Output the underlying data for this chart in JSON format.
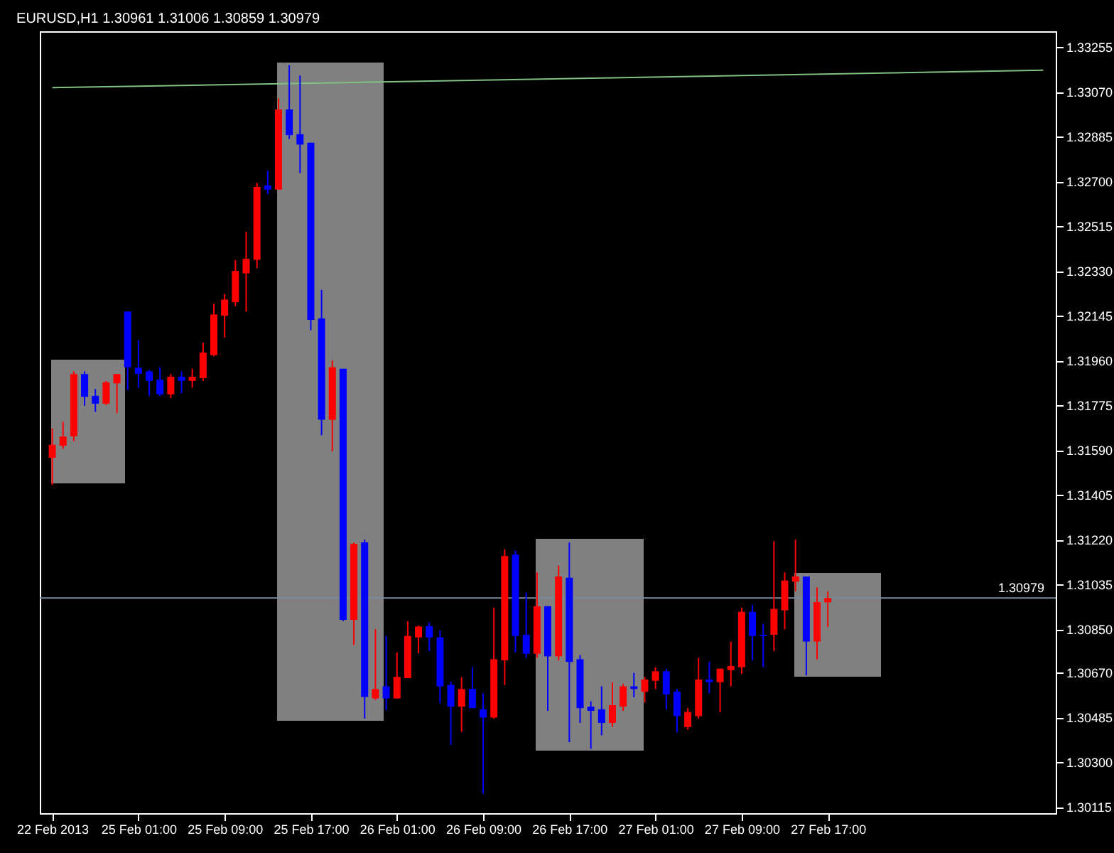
{
  "chart_data": {
    "type": "candlestick",
    "title": "EURUSD,H1  1.30961 1.31006 1.30859 1.30979",
    "categories": [
      "22 Feb 2013",
      null,
      null,
      null,
      null,
      null,
      null,
      null,
      "25 Feb 01:00",
      null,
      null,
      null,
      null,
      null,
      null,
      null,
      "25 Feb 09:00",
      null,
      null,
      null,
      null,
      null,
      null,
      null,
      "25 Feb 17:00",
      null,
      null,
      null,
      null,
      null,
      null,
      null,
      "26 Feb 01:00",
      null,
      null,
      null,
      null,
      null,
      null,
      null,
      "26 Feb 09:00",
      null,
      null,
      null,
      null,
      null,
      null,
      null,
      "26 Feb 17:00",
      null,
      null,
      null,
      null,
      null,
      null,
      null,
      "27 Feb 01:00",
      null,
      null,
      null,
      null,
      null,
      null,
      null,
      "27 Feb 09:00",
      null,
      null,
      null,
      null,
      null,
      null,
      null,
      "27 Feb 17:00",
      null,
      null,
      null,
      null,
      null,
      null,
      null,
      null,
      null,
      null,
      null,
      null,
      null,
      null,
      null,
      null,
      null,
      null,
      null,
      null
    ],
    "ohlc": [
      [
        1.31558,
        1.31679,
        1.31446,
        1.31612
      ],
      [
        1.31608,
        1.31707,
        1.31595,
        1.31646
      ],
      [
        1.31647,
        1.31915,
        1.31627,
        1.31904
      ],
      [
        1.31904,
        1.31915,
        1.31773,
        1.3181
      ],
      [
        1.31814,
        1.31842,
        1.31748,
        1.31782
      ],
      [
        1.31782,
        1.31876,
        1.31776,
        1.3187
      ],
      [
        1.31866,
        1.31904,
        1.31743,
        1.31904
      ],
      [
        1.32162,
        1.32162,
        1.31838,
        1.31932
      ],
      [
        1.3193,
        1.32044,
        1.31848,
        1.31905
      ],
      [
        1.31915,
        1.31922,
        1.31814,
        1.31876
      ],
      [
        1.31881,
        1.31932,
        1.31814,
        1.3182
      ],
      [
        1.3182,
        1.31904,
        1.31804,
        1.31893
      ],
      [
        1.31893,
        1.31915,
        1.31825,
        1.31876
      ],
      [
        1.31876,
        1.31926,
        1.31848,
        1.31893
      ],
      [
        1.31887,
        1.32033,
        1.31876,
        1.31993
      ],
      [
        1.31982,
        1.32195,
        1.31977,
        1.3215
      ],
      [
        1.32145,
        1.32235,
        1.32055,
        1.32212
      ],
      [
        1.32201,
        1.32375,
        1.32184,
        1.3233
      ],
      [
        1.3232,
        1.32492,
        1.32162,
        1.3238
      ],
      [
        1.32376,
        1.32694,
        1.32341,
        1.32677
      ],
      [
        1.32683,
        1.32745,
        1.32647,
        1.32666
      ],
      [
        1.32666,
        1.33043,
        1.32666,
        1.32997
      ],
      [
        1.32997,
        1.3318,
        1.32875,
        1.32891
      ],
      [
        1.32895,
        1.33137,
        1.32734,
        1.32852
      ],
      [
        1.3286,
        1.3286,
        1.32085,
        1.32128
      ],
      [
        1.32134,
        1.32252,
        1.31651,
        1.31715
      ],
      [
        1.31715,
        1.3196,
        1.31585,
        1.31932
      ],
      [
        1.31926,
        1.31926,
        1.30884,
        1.30889
      ],
      [
        1.30889,
        1.31208,
        1.30785,
        1.31203
      ],
      [
        1.31209,
        1.3122,
        1.30481,
        1.3057
      ],
      [
        1.30564,
        1.3085,
        1.30558,
        1.30603
      ],
      [
        1.30614,
        1.30822,
        1.30515,
        1.30564
      ],
      [
        1.30564,
        1.30754,
        1.30564,
        1.30653
      ],
      [
        1.30648,
        1.30883,
        1.30648,
        1.30822
      ],
      [
        1.30816,
        1.30866,
        1.30751,
        1.30861
      ],
      [
        1.30863,
        1.30878,
        1.3076,
        1.30816
      ],
      [
        1.30816,
        1.30845,
        1.30544,
        1.30614
      ],
      [
        1.3062,
        1.30633,
        1.30373,
        1.3053
      ],
      [
        1.3053,
        1.30653,
        1.30426,
        1.30603
      ],
      [
        1.30603,
        1.30693,
        1.30524,
        1.30524
      ],
      [
        1.30519,
        1.30586,
        1.30171,
        1.30485
      ],
      [
        1.30485,
        1.30939,
        1.3048,
        1.30726
      ],
      [
        1.30721,
        1.3118,
        1.3062,
        1.31152
      ],
      [
        1.31158,
        1.31175,
        1.30754,
        1.30822
      ],
      [
        1.30827,
        1.31001,
        1.30732,
        1.30749
      ],
      [
        1.30749,
        1.31085,
        1.30732,
        1.30945
      ],
      [
        1.30945,
        1.30945,
        1.30513,
        1.30738
      ],
      [
        1.30738,
        1.31113,
        1.30721,
        1.31068
      ],
      [
        1.31063,
        1.31208,
        1.30384,
        1.30715
      ],
      [
        1.30726,
        1.30743,
        1.30463,
        1.30524
      ],
      [
        1.3053,
        1.30552,
        1.30356,
        1.30513
      ],
      [
        1.30519,
        1.30614,
        1.30412,
        1.30463
      ],
      [
        1.30463,
        1.30631,
        1.30446,
        1.30536
      ],
      [
        1.3053,
        1.30625,
        1.30513,
        1.30614
      ],
      [
        1.30614,
        1.3067,
        1.30569,
        1.30603
      ],
      [
        1.30592,
        1.30653,
        1.30547,
        1.30642
      ],
      [
        1.30637,
        1.30693,
        1.30603,
        1.30676
      ],
      [
        1.30676,
        1.30687,
        1.30519,
        1.30581
      ],
      [
        1.30592,
        1.30603,
        1.30424,
        1.30491
      ],
      [
        1.30446,
        1.30524,
        1.30435,
        1.30508
      ],
      [
        1.30491,
        1.30732,
        1.3048,
        1.30642
      ],
      [
        1.30642,
        1.30715,
        1.30586,
        1.30631
      ],
      [
        1.30631,
        1.30687,
        1.30508,
        1.30687
      ],
      [
        1.30681,
        1.30799,
        1.30614,
        1.30698
      ],
      [
        1.30693,
        1.30939,
        1.30665,
        1.30922
      ],
      [
        1.30922,
        1.3095,
        1.30721,
        1.30822
      ],
      [
        1.30827,
        1.30872,
        1.30693,
        1.30822
      ],
      [
        1.30827,
        1.31214,
        1.3076,
        1.30934
      ],
      [
        1.30928,
        1.31085,
        1.3085,
        1.31051
      ],
      [
        1.31046,
        1.3122,
        1.31007,
        1.31068
      ],
      [
        1.31068,
        1.31068,
        1.30659,
        1.30799
      ],
      [
        1.30799,
        1.31023,
        1.30726,
        1.30962
      ],
      [
        1.30961,
        1.31006,
        1.30859,
        1.30979
      ],
      null,
      null,
      null,
      null,
      null,
      null,
      null,
      null,
      null,
      null,
      null,
      null,
      null,
      null,
      null,
      null,
      null,
      null,
      null,
      null
    ],
    "colors": [
      "#ff0000",
      "#ff0000",
      "#ff0000",
      "#0000ff",
      "#0000ff",
      "#ff0000",
      "#ff0000",
      "#0000ff",
      "#0000ff",
      "#0000ff",
      "#0000ff",
      "#ff0000",
      "#0000ff",
      "#ff0000",
      "#ff0000",
      "#ff0000",
      "#ff0000",
      "#ff0000",
      "#ff0000",
      "#ff0000",
      "#0000ff",
      "#ff0000",
      "#0000ff",
      "#0000ff",
      "#0000ff",
      "#0000ff",
      "#ff0000",
      "#0000ff",
      "#ff0000",
      "#0000ff",
      "#ff0000",
      "#0000ff",
      "#ff0000",
      "#ff0000",
      "#ff0000",
      "#0000ff",
      "#0000ff",
      "#0000ff",
      "#ff0000",
      "#0000ff",
      "#0000ff",
      "#ff0000",
      "#ff0000",
      "#0000ff",
      "#0000ff",
      "#ff0000",
      "#0000ff",
      "#ff0000",
      "#0000ff",
      "#0000ff",
      "#0000ff",
      "#0000ff",
      "#ff0000",
      "#ff0000",
      "#0000ff",
      "#ff0000",
      "#ff0000",
      "#0000ff",
      "#0000ff",
      "#ff0000",
      "#ff0000",
      "#0000ff",
      "#ff0000",
      "#ff0000",
      "#ff0000",
      "#0000ff",
      "#0000ff",
      "#ff0000",
      "#ff0000",
      "#ff0000",
      "#0000ff",
      "#ff0000",
      "#ff0000",
      null,
      null,
      null,
      null,
      null,
      null,
      null,
      null,
      null,
      null,
      null,
      null,
      null,
      null,
      null,
      null,
      null,
      null,
      null,
      null
    ],
    "series": [
      {
        "type": "line",
        "values": [
          1.33087,
          null,
          null,
          null,
          null,
          null,
          null,
          null,
          null,
          null,
          null,
          null,
          null,
          null,
          null,
          null,
          null,
          null,
          null,
          null,
          null,
          null,
          null,
          null,
          null,
          null,
          null,
          null,
          null,
          null,
          null,
          null,
          null,
          null,
          null,
          null,
          null,
          null,
          null,
          null,
          null,
          null,
          null,
          null,
          null,
          null,
          null,
          null,
          null,
          null,
          null,
          null,
          null,
          null,
          null,
          null,
          null,
          null,
          null,
          null,
          null,
          null,
          null,
          null,
          null,
          null,
          null,
          null,
          null,
          null,
          null,
          null,
          null,
          null,
          null,
          null,
          null,
          null,
          null,
          null,
          null,
          null,
          null,
          null,
          null,
          null,
          null,
          null,
          null,
          null,
          null,
          null,
          1.33159
        ],
        "color": "#80c080"
      }
    ],
    "ylim": [
      1.3009,
      1.3332
    ],
    "yticks": [
      {
        "value": 1.30115,
        "label": "1.30115"
      },
      {
        "value": 1.303,
        "label": "1.30300"
      },
      {
        "value": 1.30485,
        "label": "1.30485"
      },
      {
        "value": 1.3067,
        "label": "1.30670"
      },
      {
        "value": 1.3085,
        "label": "1.30850"
      },
      {
        "value": 1.31035,
        "label": "1.31035"
      },
      {
        "value": 1.3122,
        "label": "1.31220"
      },
      {
        "value": 1.31405,
        "label": "1.31405"
      },
      {
        "value": 1.3159,
        "label": "1.31590"
      },
      {
        "value": 1.31775,
        "label": "1.31775"
      },
      {
        "value": 1.3196,
        "label": "1.31960"
      },
      {
        "value": 1.32145,
        "label": "1.32145"
      },
      {
        "value": 1.3233,
        "label": "1.32330"
      },
      {
        "value": 1.32515,
        "label": "1.32515"
      },
      {
        "value": 1.327,
        "label": "1.32700"
      },
      {
        "value": 1.32885,
        "label": "1.32885"
      },
      {
        "value": 1.3307,
        "label": "1.33070"
      },
      {
        "value": 1.33255,
        "label": "1.33255"
      }
    ],
    "ref_lines": [
      {
        "axis": "y",
        "value": 1.30979,
        "label": "1.30979",
        "color": "#7a8a9a"
      }
    ]
  }
}
